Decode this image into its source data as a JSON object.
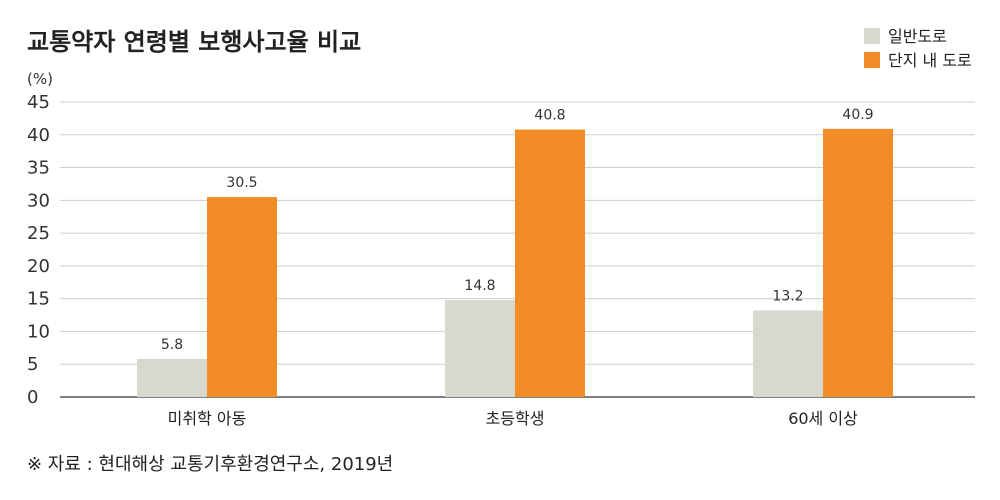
{
  "chart_data": {
    "type": "bar",
    "title": "교통약자 연령별 보행사고율 비교",
    "ylabel": "(%)",
    "xlabel": "",
    "ylim": [
      0,
      45
    ],
    "yticks": [
      0,
      5,
      10,
      15,
      20,
      25,
      30,
      35,
      40,
      45
    ],
    "categories": [
      "미취학 아동",
      "초등학생",
      "60세 이상"
    ],
    "series": [
      {
        "name": "일반도로",
        "values": [
          5.8,
          14.8,
          13.2
        ],
        "color": "#d8d8cf"
      },
      {
        "name": "단지 내 도로",
        "values": [
          30.5,
          40.8,
          40.9
        ],
        "color": "#f28c28"
      }
    ],
    "grid": true,
    "legend": "top-right",
    "source": "※ 자료 : 현대해상 교통기후환경연구소, 2019년"
  }
}
